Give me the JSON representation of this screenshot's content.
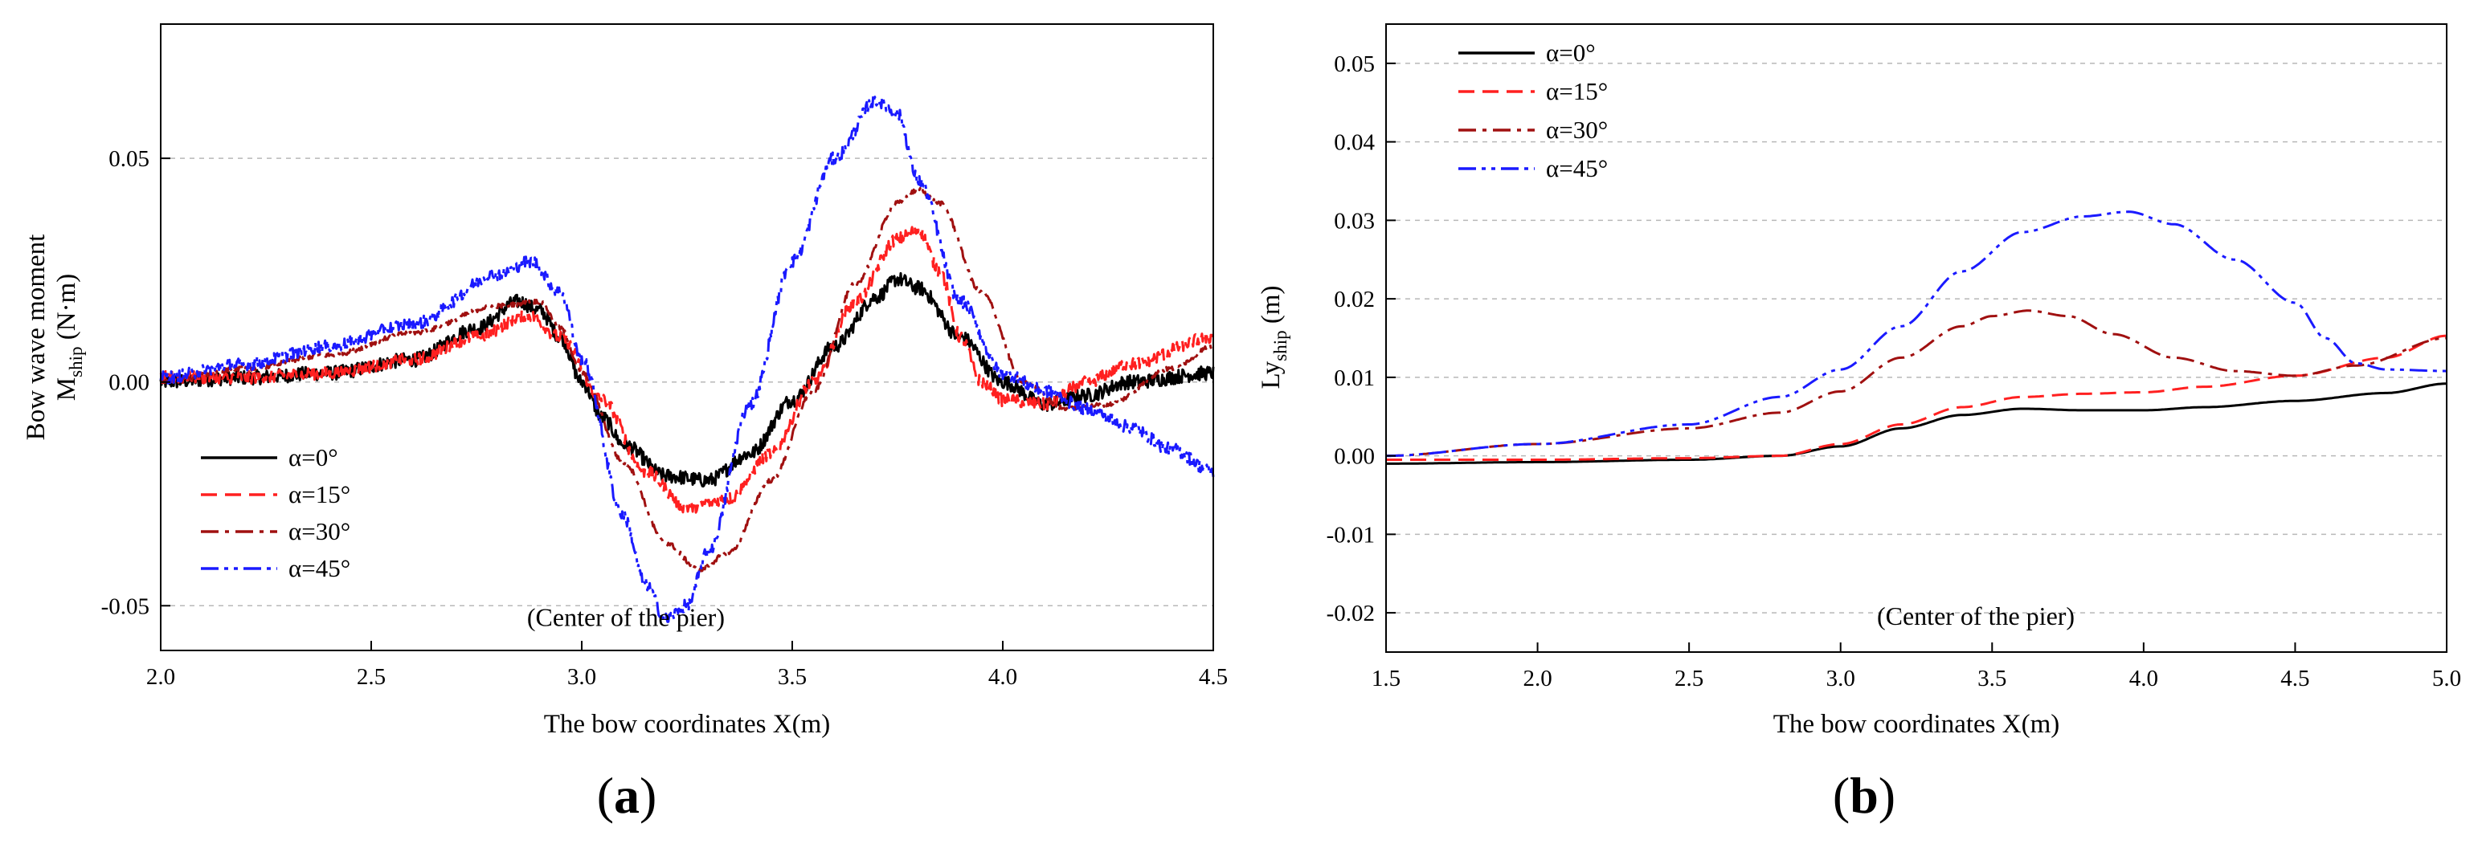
{
  "chart_data": [
    {
      "id": "a",
      "type": "line",
      "panel_label": "a",
      "xlabel": "The bow coordinates X(m)",
      "ylabel_line1": "Bow wave moment",
      "ylabel_line2_main": "M",
      "ylabel_line2_sub": "ship",
      "ylabel_line2_unit": " (N·m)",
      "xlim": [
        2.0,
        4.5
      ],
      "ylim": [
        -0.06,
        0.08
      ],
      "xticks": [
        2.0,
        2.5,
        3.0,
        3.5,
        4.0,
        4.5
      ],
      "xtick_labels": [
        "2.0",
        "2.5",
        "3.0",
        "3.5",
        "4.0",
        "4.5"
      ],
      "yticks": [
        -0.05,
        0.0,
        0.05
      ],
      "ytick_labels": [
        "-0.05",
        "0.00",
        "0.05"
      ],
      "grid": "horizontal dashed",
      "legend_position": "lower-left",
      "annotation": {
        "text": "(Center of the pier)",
        "x": 2.87,
        "y": -0.0545
      },
      "series": [
        {
          "name": "α=0°",
          "color": "#000000",
          "dash": "",
          "noise": 0.0016,
          "x": [
            2.0,
            2.2,
            2.4,
            2.6,
            2.75,
            2.85,
            2.9,
            2.95,
            3.0,
            3.05,
            3.1,
            3.2,
            3.3,
            3.4,
            3.5,
            3.6,
            3.7,
            3.75,
            3.8,
            3.9,
            4.0,
            4.1,
            4.2,
            4.3,
            4.5
          ],
          "y": [
            0.0,
            0.001,
            0.002,
            0.005,
            0.012,
            0.018,
            0.016,
            0.01,
            0.0,
            -0.008,
            -0.014,
            -0.021,
            -0.022,
            -0.016,
            -0.004,
            0.008,
            0.019,
            0.023,
            0.021,
            0.01,
            0.0,
            -0.005,
            -0.003,
            0.0,
            0.002
          ]
        },
        {
          "name": "α=15°",
          "color": "#ff2020",
          "dash": "20 10",
          "noise": 0.0014,
          "x": [
            2.0,
            2.2,
            2.4,
            2.6,
            2.75,
            2.87,
            2.95,
            3.05,
            3.15,
            3.25,
            3.35,
            3.45,
            3.55,
            3.65,
            3.75,
            3.8,
            3.85,
            3.9,
            3.95,
            4.0,
            4.1,
            4.2,
            4.3,
            4.5
          ],
          "y": [
            0.001,
            0.001,
            0.002,
            0.005,
            0.01,
            0.015,
            0.01,
            -0.004,
            -0.02,
            -0.028,
            -0.026,
            -0.016,
            0.0,
            0.018,
            0.032,
            0.034,
            0.025,
            0.01,
            0.0,
            -0.004,
            -0.005,
            0.0,
            0.004,
            0.01
          ]
        },
        {
          "name": "α=30°",
          "color": "#a01010",
          "dash": "22 8 5 8",
          "noise": 0.0005,
          "x": [
            2.0,
            2.2,
            2.4,
            2.6,
            2.8,
            2.9,
            2.95,
            3.0,
            3.1,
            3.2,
            3.28,
            3.35,
            3.45,
            3.55,
            3.65,
            3.75,
            3.8,
            3.85,
            3.95,
            4.05,
            4.15,
            4.25,
            4.4,
            4.5
          ],
          "y": [
            0.0,
            0.003,
            0.006,
            0.011,
            0.017,
            0.018,
            0.012,
            0.002,
            -0.018,
            -0.036,
            -0.042,
            -0.038,
            -0.022,
            -0.002,
            0.022,
            0.04,
            0.043,
            0.04,
            0.02,
            0.0,
            -0.006,
            -0.005,
            0.003,
            0.008
          ]
        },
        {
          "name": "α=45°",
          "color": "#1a1aff",
          "dash": "22 7 5 7 5 7",
          "noise": 0.0014,
          "x": [
            2.0,
            2.2,
            2.4,
            2.6,
            2.8,
            2.88,
            2.95,
            3.0,
            3.1,
            3.15,
            3.2,
            3.25,
            3.3,
            3.4,
            3.5,
            3.6,
            3.7,
            3.75,
            3.8,
            3.9,
            4.0,
            4.1,
            4.2,
            4.3,
            4.4,
            4.5
          ],
          "y": [
            0.001,
            0.004,
            0.008,
            0.013,
            0.024,
            0.027,
            0.02,
            0.005,
            -0.03,
            -0.045,
            -0.053,
            -0.05,
            -0.038,
            -0.005,
            0.027,
            0.05,
            0.063,
            0.06,
            0.045,
            0.018,
            0.002,
            -0.002,
            -0.006,
            -0.01,
            -0.015,
            -0.02
          ]
        }
      ]
    },
    {
      "id": "b",
      "type": "line",
      "panel_label": "b",
      "xlabel": "The bow coordinates X(m)",
      "ylabel_main": "Ly",
      "ylabel_sub": "ship",
      "ylabel_unit": " (m)",
      "xlim": [
        1.5,
        5.0
      ],
      "ylim": [
        -0.025,
        0.055
      ],
      "xticks": [
        1.5,
        2.0,
        2.5,
        3.0,
        3.5,
        4.0,
        4.5,
        5.0
      ],
      "xtick_labels": [
        "1.5",
        "2.0",
        "2.5",
        "3.0",
        "3.5",
        "4.0",
        "4.5",
        "5.0"
      ],
      "yticks": [
        -0.02,
        -0.01,
        0.0,
        0.01,
        0.02,
        0.03,
        0.04,
        0.05
      ],
      "ytick_labels": [
        "-0.02",
        "-0.01",
        "0.00",
        "0.01",
        "0.02",
        "0.03",
        "0.04",
        "0.05"
      ],
      "grid": "horizontal dashed",
      "legend_position": "top-left",
      "annotation": {
        "text": "(Center of the pier)",
        "x": 3.12,
        "y": -0.0215
      },
      "series": [
        {
          "name": "α=0°",
          "color": "#000000",
          "dash": "",
          "noise": 0,
          "x": [
            1.5,
            2.0,
            2.5,
            2.8,
            3.0,
            3.2,
            3.4,
            3.6,
            3.8,
            4.0,
            4.2,
            4.5,
            4.8,
            5.0
          ],
          "y": [
            -0.001,
            -0.0008,
            -0.0005,
            0.0,
            0.0012,
            0.0035,
            0.0052,
            0.006,
            0.0058,
            0.0058,
            0.0062,
            0.007,
            0.008,
            0.0092
          ]
        },
        {
          "name": "α=15°",
          "color": "#ff2020",
          "dash": "20 10",
          "noise": 0,
          "x": [
            1.5,
            2.0,
            2.5,
            2.8,
            3.0,
            3.2,
            3.4,
            3.6,
            3.8,
            4.0,
            4.2,
            4.5,
            4.8,
            5.0
          ],
          "y": [
            -0.0005,
            -0.0005,
            -0.0003,
            0.0,
            0.0015,
            0.004,
            0.0062,
            0.0075,
            0.0079,
            0.0081,
            0.0088,
            0.0102,
            0.0125,
            0.0153
          ]
        },
        {
          "name": "α=30°",
          "color": "#a01010",
          "dash": "22 8 5 8",
          "noise": 0,
          "x": [
            1.5,
            2.0,
            2.5,
            2.8,
            3.0,
            3.2,
            3.4,
            3.5,
            3.62,
            3.75,
            3.9,
            4.1,
            4.3,
            4.5,
            4.7,
            5.0
          ],
          "y": [
            0.0,
            0.0015,
            0.0035,
            0.0055,
            0.0082,
            0.0125,
            0.0165,
            0.0178,
            0.0185,
            0.0178,
            0.0155,
            0.0125,
            0.0108,
            0.0102,
            0.0115,
            0.015
          ]
        },
        {
          "name": "α=45°",
          "color": "#1a1aff",
          "dash": "22 7 5 7 5 7",
          "noise": 0,
          "x": [
            1.5,
            2.0,
            2.5,
            2.8,
            3.0,
            3.2,
            3.4,
            3.6,
            3.8,
            3.95,
            4.1,
            4.3,
            4.5,
            4.6,
            4.7,
            4.8,
            5.0
          ],
          "y": [
            0.0,
            0.0015,
            0.004,
            0.0075,
            0.011,
            0.0165,
            0.0235,
            0.0285,
            0.0305,
            0.0311,
            0.0295,
            0.025,
            0.0195,
            0.015,
            0.0118,
            0.011,
            0.0108
          ]
        }
      ]
    }
  ]
}
